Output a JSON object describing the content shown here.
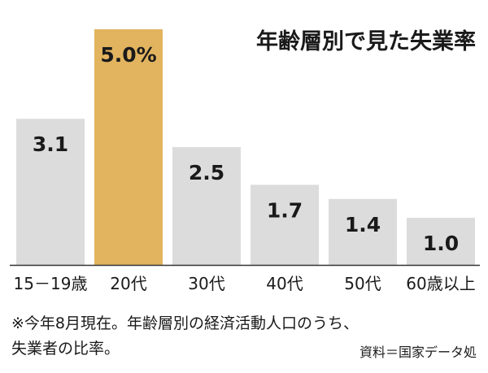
{
  "chart_data": {
    "type": "bar",
    "title": "年齢層別で見た失業率",
    "categories": [
      "15－19歳",
      "20代",
      "30代",
      "40代",
      "50代",
      "60歳以上"
    ],
    "values": [
      3.1,
      5.0,
      2.5,
      1.7,
      1.4,
      1.0
    ],
    "value_labels": [
      "3.1",
      "5.0%",
      "2.5",
      "1.7",
      "1.4",
      "1.0"
    ],
    "highlight_index": 1,
    "ylim": [
      0,
      5.0
    ],
    "grid": false,
    "colors": {
      "bar": "#dcdcdc",
      "highlight": "#e2b45f",
      "axis": "#333333"
    }
  },
  "note": "※今年8月現在。年齢層別の経済活動人口のうち、\n失業者の比率。",
  "source": "資料＝国家データ処"
}
